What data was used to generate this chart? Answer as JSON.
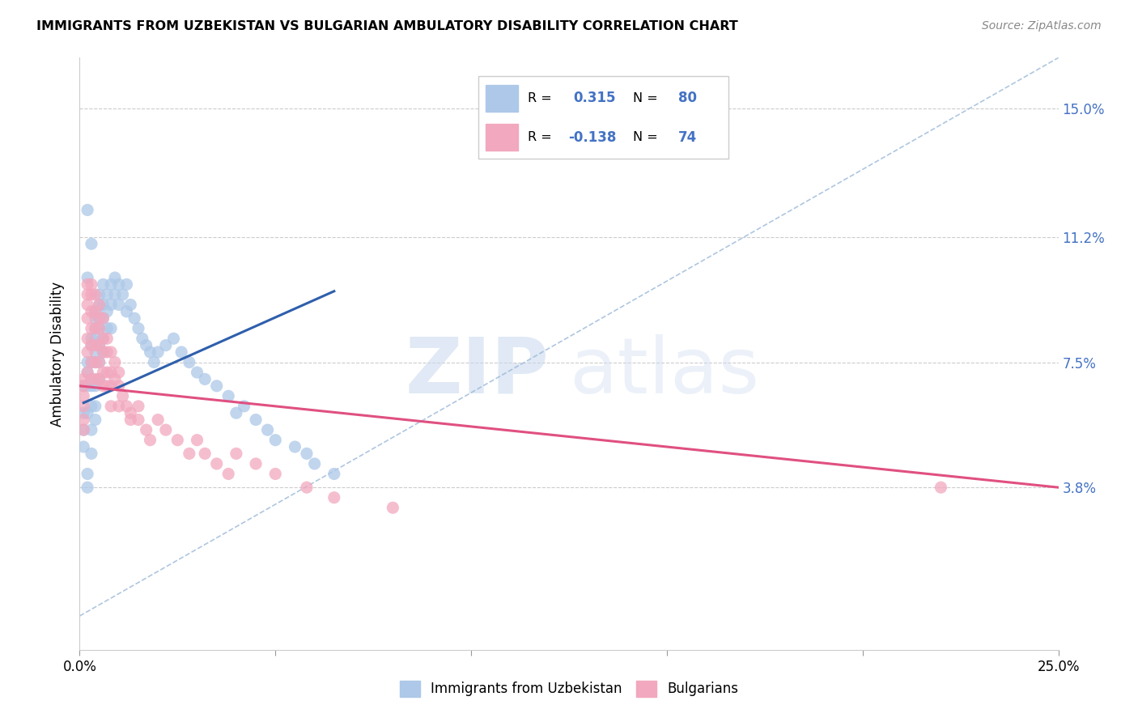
{
  "title": "IMMIGRANTS FROM UZBEKISTAN VS BULGARIAN AMBULATORY DISABILITY CORRELATION CHART",
  "source": "Source: ZipAtlas.com",
  "ylabel": "Ambulatory Disability",
  "ytick_labels": [
    "3.8%",
    "7.5%",
    "11.2%",
    "15.0%"
  ],
  "ytick_values": [
    0.038,
    0.075,
    0.112,
    0.15
  ],
  "xlim": [
    0.0,
    0.25
  ],
  "ylim": [
    -0.01,
    0.165
  ],
  "watermark_zip": "ZIP",
  "watermark_atlas": "atlas",
  "series1_color": "#adc8e8",
  "series2_color": "#f2a8be",
  "series1_line_color": "#2f5fac",
  "series2_line_color": "#e05080",
  "diagonal_color": "#9ab8d8",
  "blue_text_color": "#4472c4",
  "legend_label_1": "Immigrants from Uzbekistan",
  "legend_label_2": "Bulgarians",
  "uzbekistan_x": [
    0.001,
    0.001,
    0.001,
    0.001,
    0.002,
    0.002,
    0.002,
    0.002,
    0.002,
    0.002,
    0.003,
    0.003,
    0.003,
    0.003,
    0.003,
    0.003,
    0.003,
    0.003,
    0.004,
    0.004,
    0.004,
    0.004,
    0.004,
    0.004,
    0.004,
    0.004,
    0.004,
    0.005,
    0.005,
    0.005,
    0.005,
    0.005,
    0.005,
    0.005,
    0.006,
    0.006,
    0.006,
    0.006,
    0.006,
    0.007,
    0.007,
    0.007,
    0.008,
    0.008,
    0.008,
    0.009,
    0.009,
    0.01,
    0.01,
    0.011,
    0.012,
    0.012,
    0.013,
    0.014,
    0.015,
    0.016,
    0.017,
    0.018,
    0.019,
    0.02,
    0.022,
    0.024,
    0.026,
    0.028,
    0.03,
    0.032,
    0.035,
    0.038,
    0.04,
    0.042,
    0.045,
    0.048,
    0.05,
    0.055,
    0.058,
    0.06,
    0.065,
    0.002,
    0.002,
    0.003
  ],
  "uzbekistan_y": [
    0.068,
    0.06,
    0.055,
    0.05,
    0.075,
    0.072,
    0.068,
    0.06,
    0.042,
    0.038,
    0.082,
    0.08,
    0.075,
    0.07,
    0.068,
    0.062,
    0.055,
    0.048,
    0.09,
    0.088,
    0.085,
    0.082,
    0.078,
    0.075,
    0.068,
    0.062,
    0.058,
    0.095,
    0.092,
    0.088,
    0.085,
    0.08,
    0.075,
    0.07,
    0.098,
    0.092,
    0.088,
    0.082,
    0.078,
    0.095,
    0.09,
    0.085,
    0.098,
    0.092,
    0.085,
    0.1,
    0.095,
    0.098,
    0.092,
    0.095,
    0.098,
    0.09,
    0.092,
    0.088,
    0.085,
    0.082,
    0.08,
    0.078,
    0.075,
    0.078,
    0.08,
    0.082,
    0.078,
    0.075,
    0.072,
    0.07,
    0.068,
    0.065,
    0.06,
    0.062,
    0.058,
    0.055,
    0.052,
    0.05,
    0.048,
    0.045,
    0.042,
    0.12,
    0.1,
    0.11
  ],
  "bulgarians_x": [
    0.001,
    0.001,
    0.001,
    0.001,
    0.001,
    0.001,
    0.002,
    0.002,
    0.002,
    0.002,
    0.002,
    0.002,
    0.002,
    0.003,
    0.003,
    0.003,
    0.003,
    0.003,
    0.003,
    0.003,
    0.004,
    0.004,
    0.004,
    0.004,
    0.004,
    0.004,
    0.005,
    0.005,
    0.005,
    0.005,
    0.005,
    0.005,
    0.006,
    0.006,
    0.006,
    0.006,
    0.006,
    0.007,
    0.007,
    0.007,
    0.007,
    0.008,
    0.008,
    0.008,
    0.008,
    0.009,
    0.009,
    0.01,
    0.01,
    0.01,
    0.011,
    0.012,
    0.013,
    0.013,
    0.015,
    0.015,
    0.017,
    0.018,
    0.02,
    0.022,
    0.025,
    0.028,
    0.03,
    0.032,
    0.035,
    0.038,
    0.04,
    0.045,
    0.05,
    0.058,
    0.065,
    0.08,
    0.22
  ],
  "bulgarians_y": [
    0.07,
    0.068,
    0.065,
    0.062,
    0.058,
    0.055,
    0.098,
    0.095,
    0.092,
    0.088,
    0.082,
    0.078,
    0.072,
    0.098,
    0.095,
    0.09,
    0.085,
    0.08,
    0.075,
    0.07,
    0.095,
    0.09,
    0.085,
    0.08,
    0.075,
    0.07,
    0.092,
    0.088,
    0.085,
    0.08,
    0.075,
    0.07,
    0.088,
    0.082,
    0.078,
    0.072,
    0.068,
    0.082,
    0.078,
    0.072,
    0.068,
    0.078,
    0.072,
    0.068,
    0.062,
    0.075,
    0.07,
    0.072,
    0.068,
    0.062,
    0.065,
    0.062,
    0.06,
    0.058,
    0.062,
    0.058,
    0.055,
    0.052,
    0.058,
    0.055,
    0.052,
    0.048,
    0.052,
    0.048,
    0.045,
    0.042,
    0.048,
    0.045,
    0.042,
    0.038,
    0.035,
    0.032,
    0.038
  ],
  "blue_line_x0": 0.001,
  "blue_line_x1": 0.065,
  "blue_line_y0": 0.063,
  "blue_line_y1": 0.096,
  "pink_line_x0": 0.0,
  "pink_line_x1": 0.25,
  "pink_line_y0": 0.068,
  "pink_line_y1": 0.038
}
